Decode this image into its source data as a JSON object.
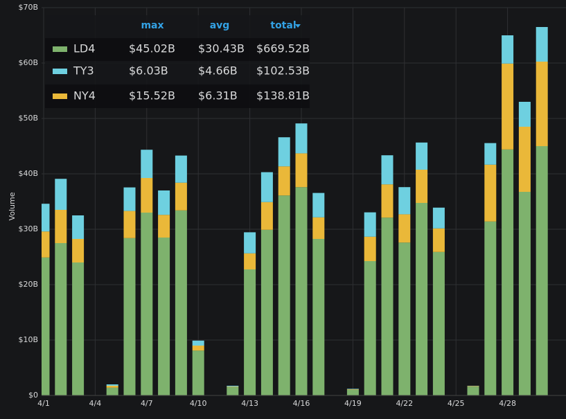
{
  "chart_data": {
    "type": "bar",
    "stacked": true,
    "y_label": "Volume",
    "categories": [
      "4/1",
      null,
      null,
      "4/4",
      null,
      null,
      "4/7",
      null,
      null,
      "4/10",
      null,
      null,
      "4/13",
      null,
      null,
      "4/16",
      null,
      null,
      "4/19",
      null,
      null,
      "4/22",
      null,
      null,
      "4/25",
      null,
      null,
      "4/28",
      null,
      null
    ],
    "series": [
      {
        "name": "LD4",
        "color": "#7eb26d",
        "stats": [
          "$45.02B",
          "$30.43B",
          "$669.52B"
        ],
        "values": [
          24.9,
          27.5,
          24.0,
          0,
          1.4,
          28.4,
          33.0,
          28.5,
          33.4,
          8.1,
          0,
          1.5,
          22.75,
          29.9,
          36.1,
          37.6,
          28.25,
          0,
          1.0,
          24.25,
          32.1,
          27.6,
          34.75,
          25.9,
          0,
          1.6,
          31.4,
          44.4,
          36.75,
          45.0
        ]
      },
      {
        "name": "TY3",
        "color": "#6ed0e0",
        "stats": [
          "$6.03B",
          "$4.66B",
          "$102.53B"
        ],
        "values": [
          5.0,
          5.6,
          4.25,
          0,
          0.25,
          4.25,
          5.1,
          4.4,
          4.9,
          0.9,
          0,
          0.15,
          3.8,
          5.4,
          5.25,
          5.4,
          4.4,
          0,
          0.1,
          4.4,
          5.25,
          4.9,
          4.9,
          3.75,
          0,
          0.05,
          3.9,
          5.1,
          4.5,
          6.25
        ]
      },
      {
        "name": "NY4",
        "color": "#eab839",
        "stats": [
          "$15.52B",
          "$6.31B",
          "$138.81B"
        ],
        "values": [
          4.7,
          6.0,
          4.25,
          0,
          0.35,
          4.9,
          6.25,
          4.1,
          5.0,
          0.9,
          0,
          0.1,
          2.9,
          5.0,
          5.25,
          6.1,
          3.9,
          0,
          0.1,
          4.4,
          6.0,
          5.1,
          6.0,
          4.25,
          0,
          0.1,
          10.25,
          15.5,
          11.75,
          15.25
        ]
      }
    ],
    "legend_columns": [
      "max",
      "avg",
      "total"
    ],
    "ylim": [
      0,
      70
    ],
    "yticks": [
      {
        "value": 0,
        "label": "$0"
      },
      {
        "value": 10,
        "label": "$10B"
      },
      {
        "value": 20,
        "label": "$20B"
      },
      {
        "value": 30,
        "label": "$30B"
      },
      {
        "value": 40,
        "label": "$40B"
      },
      {
        "value": 50,
        "label": "$50B"
      },
      {
        "value": 60,
        "label": "$60B"
      },
      {
        "value": 70,
        "label": "$70B"
      }
    ],
    "grid": true
  }
}
